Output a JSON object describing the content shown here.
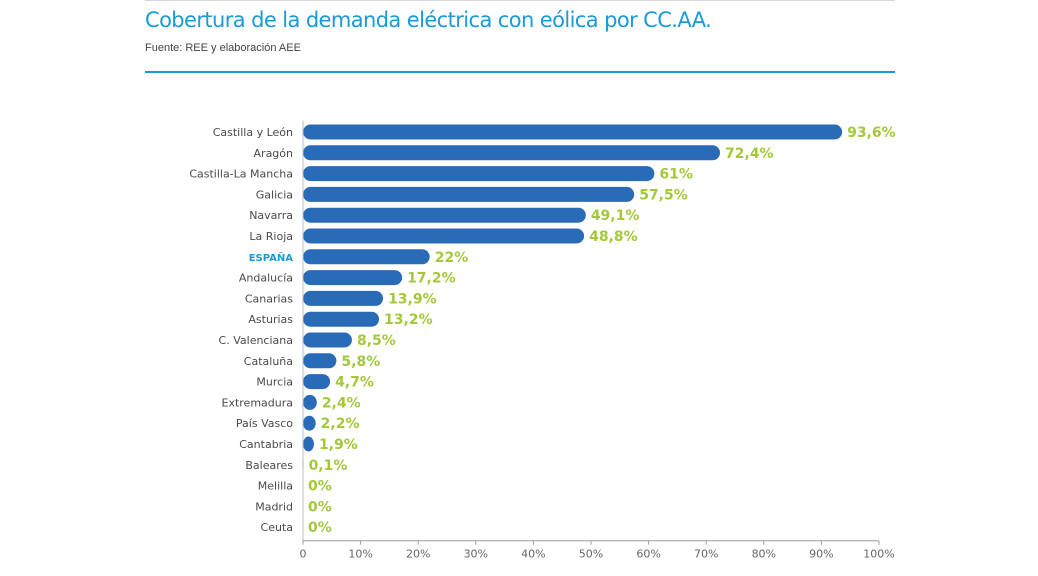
{
  "header": {
    "title": "Cobertura de la demanda eléctrica con eólica por CC.AA.",
    "subtitle": "Fuente: REE y elaboración AEE"
  },
  "colors": {
    "bar": "#2a6bb8",
    "value_label": "#a3c83a",
    "accent": "#1a9ad6",
    "highlight_category": "#1a9ad6"
  },
  "chart_data": {
    "type": "bar",
    "orientation": "horizontal",
    "categories": [
      "Castilla y León",
      "Aragón",
      "Castilla-La Mancha",
      "Galicia",
      "Navarra",
      "La Rioja",
      "ESPAÑA",
      "Andalucía",
      "Canarias",
      "Asturias",
      "C. Valenciana",
      "Cataluña",
      "Murcia",
      "Extremadura",
      "País Vasco",
      "Cantabria",
      "Baleares",
      "Melilla",
      "Madrid",
      "Ceuta"
    ],
    "values": [
      93.6,
      72.4,
      61,
      57.5,
      49.1,
      48.8,
      22,
      17.2,
      13.9,
      13.2,
      8.5,
      5.8,
      4.7,
      2.4,
      2.2,
      1.9,
      0.1,
      0,
      0,
      0
    ],
    "value_labels": [
      "93,6%",
      "72,4%",
      "61%",
      "57,5%",
      "49,1%",
      "48,8%",
      "22%",
      "17,2%",
      "13,9%",
      "13,2%",
      "8,5%",
      "5,8%",
      "4,7%",
      "2,4%",
      "2,2%",
      "1,9%",
      "0,1%",
      "0%",
      "0%",
      "0%"
    ],
    "highlight_category": "ESPAÑA",
    "xlim": [
      0,
      100
    ],
    "xticks": [
      "0",
      "10%",
      "20%",
      "30%",
      "40%",
      "50%",
      "60%",
      "70%",
      "80%",
      "90%",
      "100%"
    ],
    "grid": false
  }
}
